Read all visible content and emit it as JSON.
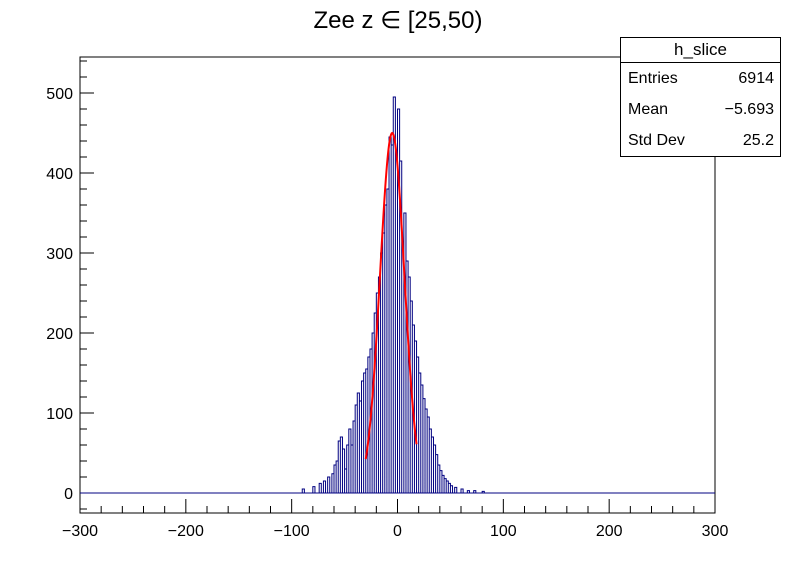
{
  "chart_data": {
    "type": "histogram",
    "title": "Zee z ∈ [25,50)",
    "xlabel": "",
    "ylabel": "",
    "xlim": [
      -300,
      300
    ],
    "ylim": [
      -25,
      545
    ],
    "x_ticks": [
      -300,
      -200,
      -100,
      0,
      100,
      200,
      300
    ],
    "x_tick_labels": [
      "−300",
      "−200",
      "−100",
      "0",
      "100",
      "200",
      "300"
    ],
    "y_ticks": [
      0,
      100,
      200,
      300,
      400,
      500
    ],
    "y_tick_labels": [
      "0",
      "100",
      "200",
      "300",
      "400",
      "500"
    ],
    "series": [
      {
        "name": "h_slice",
        "style": "step",
        "color": "#000080",
        "bin_width": 2,
        "bins": [
          [
            -90,
            5
          ],
          [
            -80,
            8
          ],
          [
            -74,
            12
          ],
          [
            -70,
            15
          ],
          [
            -66,
            20
          ],
          [
            -62,
            24
          ],
          [
            -60,
            35
          ],
          [
            -58,
            40
          ],
          [
            -56,
            65
          ],
          [
            -54,
            70
          ],
          [
            -52,
            55
          ],
          [
            -50,
            30
          ],
          [
            -48,
            60
          ],
          [
            -46,
            80
          ],
          [
            -44,
            60
          ],
          [
            -42,
            90
          ],
          [
            -40,
            110
          ],
          [
            -38,
            125
          ],
          [
            -36,
            115
          ],
          [
            -34,
            140
          ],
          [
            -32,
            150
          ],
          [
            -30,
            155
          ],
          [
            -28,
            170
          ],
          [
            -26,
            180
          ],
          [
            -24,
            200
          ],
          [
            -22,
            225
          ],
          [
            -20,
            250
          ],
          [
            -18,
            270
          ],
          [
            -16,
            300
          ],
          [
            -14,
            325
          ],
          [
            -12,
            360
          ],
          [
            -10,
            380
          ],
          [
            -8,
            445
          ],
          [
            -6,
            435
          ],
          [
            -4,
            495
          ],
          [
            -2,
            425
          ],
          [
            0,
            480
          ],
          [
            2,
            415
          ],
          [
            4,
            305
          ],
          [
            6,
            350
          ],
          [
            8,
            290
          ],
          [
            10,
            270
          ],
          [
            12,
            240
          ],
          [
            14,
            210
          ],
          [
            16,
            190
          ],
          [
            18,
            170
          ],
          [
            20,
            150
          ],
          [
            22,
            135
          ],
          [
            24,
            118
          ],
          [
            26,
            105
          ],
          [
            28,
            95
          ],
          [
            30,
            80
          ],
          [
            32,
            70
          ],
          [
            34,
            60
          ],
          [
            36,
            48
          ],
          [
            38,
            35
          ],
          [
            40,
            28
          ],
          [
            42,
            22
          ],
          [
            44,
            18
          ],
          [
            46,
            15
          ],
          [
            48,
            12
          ],
          [
            50,
            9
          ],
          [
            54,
            7
          ],
          [
            60,
            5
          ],
          [
            66,
            3
          ],
          [
            72,
            3
          ],
          [
            80,
            2
          ]
        ]
      },
      {
        "name": "fit",
        "style": "line",
        "color": "#ff0000",
        "range": [
          -30,
          18
        ],
        "amplitude": 450,
        "mean": -5,
        "sigma": 11.5
      }
    ]
  },
  "stats_box": {
    "title": "h_slice",
    "rows": [
      {
        "label": "Entries",
        "value": "6914"
      },
      {
        "label": "Mean",
        "value": "−5.693"
      },
      {
        "label": "Std Dev",
        "value": "25.2"
      }
    ]
  }
}
